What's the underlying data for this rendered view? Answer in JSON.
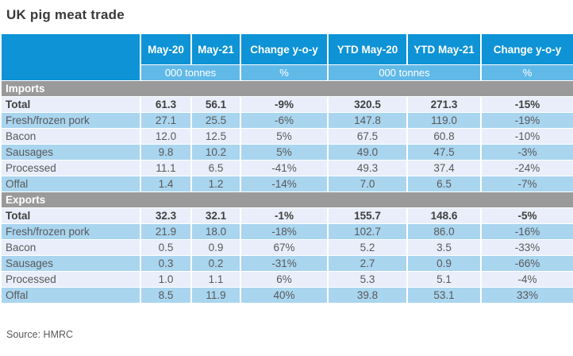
{
  "title": "UK pig meat trade",
  "source_note": "Source: HMRC",
  "colors": {
    "header_blue": "#0d93d6",
    "subheader_blue": "#61b9e8",
    "row_blue": "#a9d5ef",
    "row_pale": "#e9eefa",
    "section_gray": "#9a9a9a"
  },
  "chart_data": {
    "type": "table",
    "title": "UK pig meat trade",
    "source": "Source: HMRC",
    "column_headers": [
      "May-20",
      "May-21",
      "Change y-o-y",
      "YTD May-20",
      "YTD May-21",
      "Change y-o-y"
    ],
    "unit_headers": [
      "000 tonnes",
      "%",
      "000 tonnes",
      "%"
    ],
    "sections": [
      {
        "name": "Imports",
        "rows": [
          {
            "label": "Total",
            "bold": true,
            "values": [
              "61.3",
              "56.1",
              "-9%",
              "320.5",
              "271.3",
              "-15%"
            ]
          },
          {
            "label": "Fresh/frozen pork",
            "bold": false,
            "values": [
              "27.1",
              "25.5",
              "-6%",
              "147.8",
              "119.0",
              "-19%"
            ]
          },
          {
            "label": "Bacon",
            "bold": false,
            "values": [
              "12.0",
              "12.5",
              "5%",
              "67.5",
              "60.8",
              "-10%"
            ]
          },
          {
            "label": "Sausages",
            "bold": false,
            "values": [
              "9.8",
              "10.2",
              "5%",
              "49.0",
              "47.5",
              "-3%"
            ]
          },
          {
            "label": "Processed",
            "bold": false,
            "values": [
              "11.1",
              "6.5",
              "-41%",
              "49.3",
              "37.4",
              "-24%"
            ]
          },
          {
            "label": "Offal",
            "bold": false,
            "values": [
              "1.4",
              "1.2",
              "-14%",
              "7.0",
              "6.5",
              "-7%"
            ]
          }
        ]
      },
      {
        "name": "Exports",
        "rows": [
          {
            "label": "Total",
            "bold": true,
            "values": [
              "32.3",
              "32.1",
              "-1%",
              "155.7",
              "148.6",
              "-5%"
            ]
          },
          {
            "label": "Fresh/frozen pork",
            "bold": false,
            "values": [
              "21.9",
              "18.0",
              "-18%",
              "102.7",
              "86.0",
              "-16%"
            ]
          },
          {
            "label": "Bacon",
            "bold": false,
            "values": [
              "0.5",
              "0.9",
              "67%",
              "5.2",
              "3.5",
              "-33%"
            ]
          },
          {
            "label": "Sausages",
            "bold": false,
            "values": [
              "0.3",
              "0.2",
              "-31%",
              "2.7",
              "0.9",
              "-66%"
            ]
          },
          {
            "label": "Processed",
            "bold": false,
            "values": [
              "1.0",
              "1.1",
              "6%",
              "5.3",
              "5.1",
              "-4%"
            ]
          },
          {
            "label": "Offal",
            "bold": false,
            "values": [
              "8.5",
              "11.9",
              "40%",
              "39.8",
              "53.1",
              "33%"
            ]
          }
        ]
      }
    ]
  }
}
